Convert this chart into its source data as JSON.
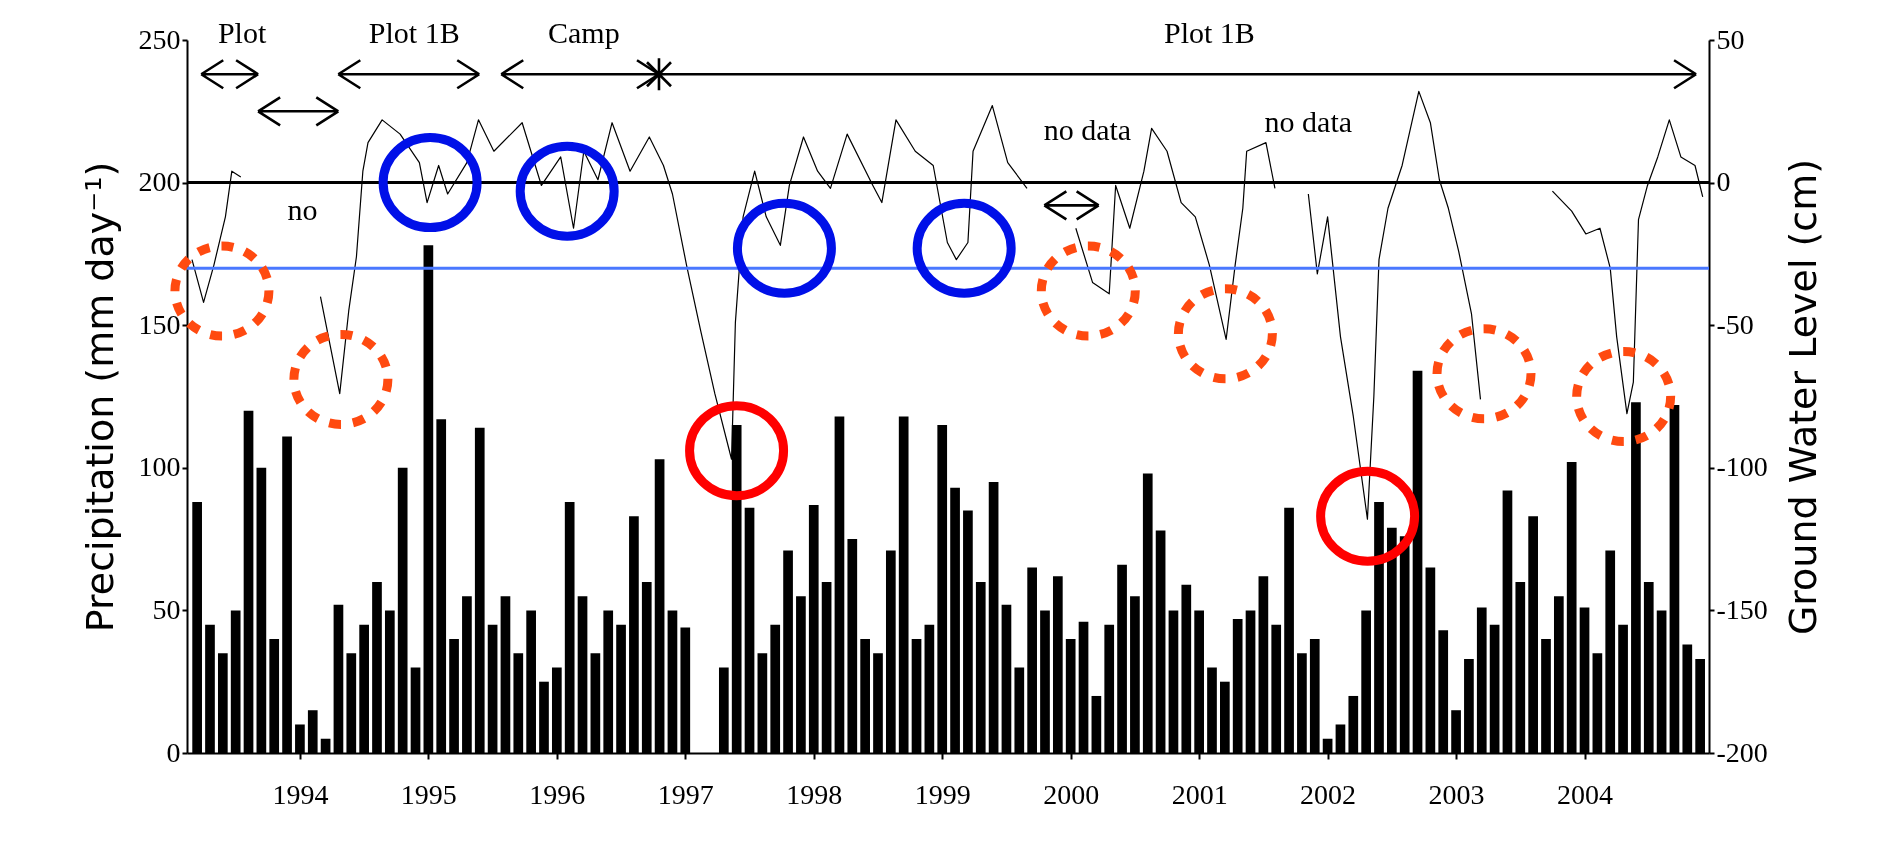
{
  "chart_data": {
    "type": "bar",
    "xlabel": null,
    "ylabel": "Precipitation (mm day⁻¹)",
    "y2label": "Ground Water Level (cm)",
    "xlim": [
      1993.66,
      2005.43
    ],
    "xticks": [
      {
        "value": 1994.5,
        "label": "1994"
      },
      {
        "value": 1995.5,
        "label": "1995"
      },
      {
        "value": 1996.5,
        "label": "1996"
      },
      {
        "value": 1997.5,
        "label": "1997"
      },
      {
        "value": 1998.5,
        "label": "1998"
      },
      {
        "value": 1999.5,
        "label": "1999"
      },
      {
        "value": 2000.5,
        "label": "2000"
      },
      {
        "value": 2001.5,
        "label": "2001"
      },
      {
        "value": 2002.5,
        "label": "2002"
      },
      {
        "value": 2003.5,
        "label": "2003"
      },
      {
        "value": 2004.5,
        "label": "2004"
      }
    ],
    "ylim": [
      0,
      250
    ],
    "yticks": [
      0,
      50,
      100,
      150,
      200,
      250
    ],
    "y2lim": [
      -200,
      50
    ],
    "y2ticks": [
      -200,
      -150,
      -100,
      -50,
      0,
      50
    ],
    "grid": false,
    "series": [
      {
        "color": "#000000",
        "x": [
          1993.7,
          1993.8,
          1993.9,
          1994.0,
          1994.1,
          1994.2,
          1994.3,
          1994.4,
          1994.5,
          1994.6,
          1994.7,
          1994.8,
          1994.9,
          1995.0,
          1995.1,
          1995.2,
          1995.3,
          1995.4,
          1995.5,
          1995.6,
          1995.7,
          1995.8,
          1995.9,
          1996.0,
          1996.1,
          1996.2,
          1996.3,
          1996.4,
          1996.5,
          1996.6,
          1996.7,
          1996.8,
          1996.9,
          1997.0,
          1997.1,
          1997.2,
          1997.3,
          1997.4,
          1997.5,
          1997.6,
          1997.7,
          1997.8,
          1997.9,
          1998.0,
          1998.1,
          1998.2,
          1998.3,
          1998.4,
          1998.5,
          1998.6,
          1998.7,
          1998.8,
          1998.9,
          1999.0,
          1999.1,
          1999.2,
          1999.3,
          1999.4,
          1999.5,
          1999.6,
          1999.7,
          1999.8,
          1999.9,
          2000.0,
          2000.1,
          2000.2,
          2000.3,
          2000.4,
          2000.5,
          2000.6,
          2000.7,
          2000.8,
          2000.9,
          2001.0,
          2001.1,
          2001.2,
          2001.3,
          2001.4,
          2001.5,
          2001.6,
          2001.7,
          2001.8,
          2001.9,
          2002.0,
          2002.1,
          2002.2,
          2002.3,
          2002.4,
          2002.5,
          2002.6,
          2002.7,
          2002.8,
          2002.9,
          2003.0,
          2003.1,
          2003.2,
          2003.3,
          2003.4,
          2003.5,
          2003.6,
          2003.7,
          2003.8,
          2003.9,
          2004.0,
          2004.1,
          2004.2,
          2004.3,
          2004.4,
          2004.5,
          2004.6,
          2004.7,
          2004.8,
          2004.9,
          2005.0,
          2005.1,
          2005.2,
          2005.3,
          2005.4
        ],
        "values": [
          88,
          45,
          35,
          50,
          120,
          100,
          40,
          111,
          10,
          15,
          5,
          52,
          35,
          45,
          60,
          50,
          100,
          30,
          178,
          117,
          40,
          55,
          114,
          45,
          55,
          35,
          50,
          25,
          30,
          88,
          55,
          35,
          50,
          45,
          83,
          60,
          103,
          50,
          44,
          0,
          0,
          30,
          115,
          86,
          35,
          45,
          71,
          55,
          87,
          60,
          118,
          75,
          40,
          35,
          71,
          118,
          40,
          45,
          115,
          93,
          85,
          60,
          95,
          52,
          30,
          65,
          50,
          62,
          40,
          46,
          20,
          45,
          66,
          55,
          98,
          78,
          50,
          59,
          50,
          30,
          25,
          47,
          50,
          62,
          45,
          86,
          35,
          40,
          5,
          10,
          20,
          50,
          88,
          79,
          76,
          134,
          65,
          43,
          15,
          33,
          51,
          45,
          92,
          60,
          83,
          40,
          55,
          102,
          51,
          35,
          71,
          45,
          123,
          60,
          50,
          122,
          38,
          33
        ]
      },
      {
        "type": "line",
        "axis": "y2",
        "color": "#000000",
        "x": [
          1993.66,
          1993.75,
          1993.83,
          1993.92,
          1993.97,
          1994.04,
          1994.2,
          1994.66,
          1994.81,
          1994.88,
          1994.94,
          1994.99,
          1995.03,
          1995.14,
          1995.28,
          1995.43,
          1995.49,
          1995.58,
          1995.65,
          1995.8,
          1995.89,
          1996.01,
          1996.23,
          1996.38,
          1996.53,
          1996.63,
          1996.71,
          1996.82,
          1996.93,
          1997.07,
          1997.22,
          1997.33,
          1997.4,
          1997.51,
          1997.62,
          1997.73,
          1997.86,
          1997.89,
          1997.95,
          1998.04,
          1998.13,
          1998.24,
          1998.31,
          1998.42,
          1998.53,
          1998.63,
          1998.76,
          1998.96,
          1999.03,
          1999.14,
          1999.29,
          1999.43,
          1999.54,
          1999.61,
          1999.7,
          1999.74,
          1999.89,
          2000.01,
          2000.16,
          2000.3,
          2000.54,
          2000.67,
          2000.8,
          2000.85,
          2000.96,
          2001.07,
          2001.13,
          2001.25,
          2001.36,
          2001.47,
          2001.58,
          2001.71,
          2001.78,
          2001.84,
          2001.87,
          2002.02,
          2002.09,
          2002.2,
          2002.35,
          2002.42,
          2002.5,
          2002.6,
          2002.7,
          2002.81,
          2002.86,
          2002.9,
          2002.97,
          2003.08,
          2003.21,
          2003.3,
          2003.37,
          2003.44,
          2003.52,
          2003.62,
          2003.69,
          2003.8,
          2004.25,
          2004.4,
          2004.51,
          2004.62,
          2004.7,
          2004.75,
          2004.83,
          2004.88,
          2004.92,
          2004.99,
          2005.07,
          2005.16,
          2005.25,
          2005.36,
          2005.42
        ],
        "values": [
          -27,
          -42,
          -29,
          -12,
          4,
          2,
          null,
          -40,
          -74,
          -45,
          -26,
          4,
          14,
          22,
          17,
          7,
          -7,
          6,
          -4,
          7,
          22,
          11,
          21,
          -1,
          9,
          -16,
          11,
          1,
          21,
          4,
          16,
          6,
          -4,
          -29,
          -52,
          -74,
          -97,
          -49,
          -12,
          4,
          -12,
          -22,
          -1,
          16,
          4,
          -2,
          17,
          -1,
          -7,
          22,
          11,
          6,
          -21,
          -27,
          -21,
          11,
          27,
          7,
          -2,
          null,
          -16,
          -35,
          -39,
          -1,
          -16,
          4,
          19,
          11,
          -7,
          -12,
          -29,
          -55,
          -29,
          -9,
          11,
          14,
          -2,
          null,
          -4,
          -32,
          -12,
          -54,
          -82,
          -118,
          -75,
          -27,
          -9,
          6,
          32,
          21,
          1,
          -9,
          -24,
          -46,
          -76,
          null,
          -3,
          -10,
          -18,
          -16,
          -30,
          -54,
          -81,
          -70,
          -13,
          -1,
          9,
          22,
          9,
          6,
          -5
        ]
      }
    ],
    "ref_lines": [
      {
        "axis": "y2",
        "value": 0,
        "color": "#000000"
      },
      {
        "axis": "y2",
        "value": -30,
        "color": "#4a78ff"
      }
    ],
    "annotations": [
      "Plot",
      "Plot 1B",
      "Camp",
      "Plot 1B",
      "no",
      "no data",
      "no data"
    ]
  }
}
